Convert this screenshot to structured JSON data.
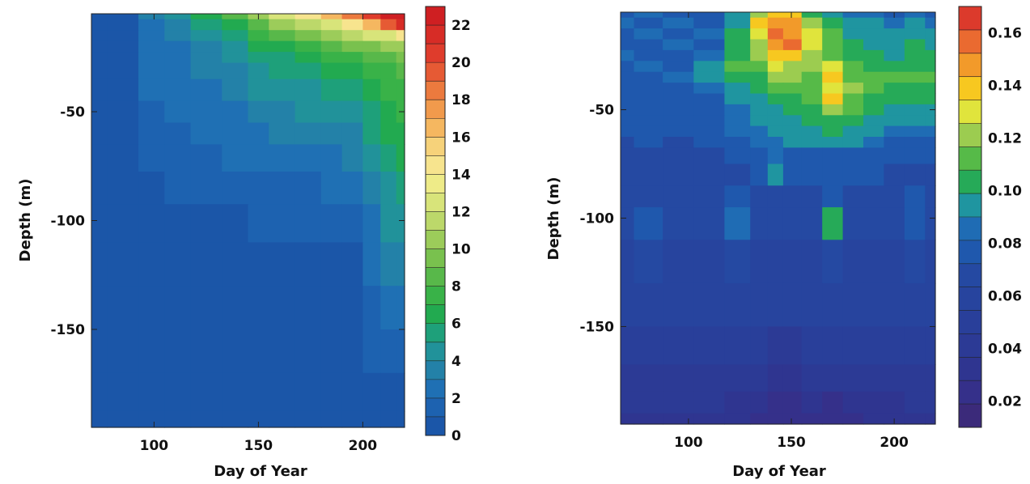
{
  "chart_data": [
    {
      "type": "heatmap",
      "title": "",
      "xlabel": "Day of Year",
      "ylabel": "Depth (m)",
      "xlim": [
        70,
        220
      ],
      "ylim": [
        -195,
        -5
      ],
      "xticks": [
        100,
        150,
        200
      ],
      "yticks": [
        -50,
        -100,
        -150
      ],
      "colorbar": {
        "min": 0,
        "max": 23,
        "ticks": [
          0,
          2,
          4,
          6,
          8,
          10,
          12,
          14,
          16,
          18,
          20,
          22
        ],
        "colors": [
          "#1b56a8",
          "#1d62b0",
          "#1f70b4",
          "#2381a8",
          "#21929a",
          "#1ea07a",
          "#22aa50",
          "#39b248",
          "#58b84a",
          "#79c14e",
          "#9ccc5a",
          "#bcd86a",
          "#d8e47a",
          "#eeeb88",
          "#f7e48e",
          "#f6d27a",
          "#f5b760",
          "#f19a4c",
          "#ec7a3e",
          "#e65a34",
          "#df3c2c",
          "#d72c26",
          "#cf1f22"
        ]
      },
      "grid": false,
      "legend": "right",
      "x": [
        70,
        85,
        100,
        110,
        125,
        140,
        150,
        160,
        175,
        185,
        195,
        205,
        212,
        220
      ],
      "y": [
        -5,
        -10,
        -15,
        -20,
        -25,
        -30,
        -40,
        -50,
        -60,
        -70,
        -85,
        -100,
        -120,
        -140,
        -160,
        -180,
        -195
      ],
      "z": [
        [
          0.5,
          0.6,
          3.0,
          4.0,
          6.0,
          8.0,
          10.5,
          12.5,
          14.0,
          16.0,
          18.0,
          20.5,
          22.5,
          23.0
        ],
        [
          0.5,
          0.6,
          2.8,
          3.5,
          5.0,
          6.5,
          8.5,
          10.0,
          11.5,
          13.0,
          14.5,
          16.5,
          19.0,
          21.0
        ],
        [
          0.5,
          0.6,
          2.5,
          3.0,
          4.2,
          5.5,
          7.0,
          8.0,
          9.0,
          10.5,
          11.5,
          12.0,
          13.0,
          14.5
        ],
        [
          0.5,
          0.6,
          2.4,
          2.8,
          3.8,
          4.8,
          6.0,
          6.8,
          7.5,
          8.5,
          9.0,
          9.5,
          10.0,
          10.5
        ],
        [
          0.5,
          0.6,
          2.3,
          2.7,
          3.5,
          4.2,
          5.2,
          5.8,
          6.5,
          7.0,
          7.5,
          8.0,
          8.5,
          9.0
        ],
        [
          0.5,
          0.6,
          2.2,
          2.6,
          3.2,
          3.8,
          4.6,
          5.2,
          5.6,
          6.0,
          6.5,
          7.0,
          7.5,
          8.0
        ],
        [
          0.5,
          0.5,
          2.0,
          2.4,
          2.8,
          3.3,
          4.0,
          4.5,
          4.8,
          5.2,
          5.6,
          6.2,
          7.0,
          7.5
        ],
        [
          0.5,
          0.5,
          1.8,
          2.2,
          2.5,
          2.9,
          3.4,
          3.8,
          4.0,
          4.3,
          4.6,
          5.5,
          6.5,
          7.0
        ],
        [
          0.5,
          0.5,
          1.6,
          1.9,
          2.2,
          2.5,
          2.9,
          3.2,
          3.4,
          3.6,
          3.9,
          5.0,
          6.0,
          6.5
        ],
        [
          0.5,
          0.5,
          1.2,
          1.5,
          1.8,
          2.0,
          2.3,
          2.5,
          2.7,
          2.9,
          3.2,
          4.5,
          5.5,
          6.0
        ],
        [
          0.5,
          0.5,
          0.8,
          1.0,
          1.3,
          1.5,
          1.6,
          1.8,
          1.9,
          2.0,
          2.2,
          3.5,
          4.8,
          5.2
        ],
        [
          0.5,
          0.5,
          0.6,
          0.7,
          0.8,
          0.9,
          1.0,
          1.1,
          1.2,
          1.3,
          1.4,
          2.8,
          4.0,
          4.5
        ],
        [
          0.5,
          0.5,
          0.5,
          0.5,
          0.6,
          0.6,
          0.7,
          0.7,
          0.8,
          0.8,
          0.9,
          2.2,
          3.2,
          3.5
        ],
        [
          0.5,
          0.5,
          0.5,
          0.5,
          0.5,
          0.5,
          0.5,
          0.5,
          0.5,
          0.6,
          0.6,
          1.6,
          2.4,
          2.6
        ],
        [
          0.5,
          0.5,
          0.5,
          0.5,
          0.5,
          0.5,
          0.5,
          0.5,
          0.5,
          0.5,
          0.5,
          1.0,
          1.6,
          1.8
        ],
        [
          0.5,
          0.5,
          0.5,
          0.5,
          0.5,
          0.5,
          0.5,
          0.5,
          0.5,
          0.5,
          0.5,
          0.6,
          0.8,
          0.9
        ],
        [
          0.5,
          0.5,
          0.5,
          0.5,
          0.5,
          0.5,
          0.5,
          0.5,
          0.5,
          0.5,
          0.5,
          0.5,
          0.5,
          0.5
        ]
      ]
    },
    {
      "type": "heatmap",
      "title": "",
      "xlabel": "Day of Year",
      "ylabel": "Depth (m)",
      "xlim": [
        67,
        220
      ],
      "ylim": [
        -195,
        -5
      ],
      "xticks": [
        100,
        150,
        200
      ],
      "yticks": [
        -50,
        -100,
        -150
      ],
      "colorbar": {
        "min": 0.01,
        "max": 0.17,
        "ticks": [
          0.02,
          0.04,
          0.06,
          0.08,
          0.1,
          0.12,
          0.14,
          0.16
        ],
        "colors": [
          "#3b2a7a",
          "#35308a",
          "#2f3590",
          "#2c3a95",
          "#293f9a",
          "#27449e",
          "#2549a2",
          "#1f58ad",
          "#1f6cb4",
          "#1f95a0",
          "#26aa58",
          "#56ba48",
          "#9ccc50",
          "#e0e43c",
          "#f7c820",
          "#f29a2a",
          "#ea6a30",
          "#dc3a2c"
        ]
      },
      "grid": false,
      "legend": "right",
      "x": [
        67,
        80,
        95,
        110,
        125,
        135,
        142,
        150,
        160,
        170,
        180,
        190,
        200,
        210,
        220
      ],
      "y": [
        -5,
        -10,
        -15,
        -20,
        -25,
        -30,
        -35,
        -40,
        -45,
        -50,
        -55,
        -60,
        -65,
        -70,
        -80,
        -90,
        -100,
        -120,
        -140,
        -160,
        -175,
        -185,
        -195
      ],
      "z": [
        [
          0.08,
          0.085,
          0.08,
          0.08,
          0.09,
          0.12,
          0.14,
          0.14,
          0.1,
          0.09,
          0.085,
          0.085,
          0.08,
          0.085,
          0.08
        ],
        [
          0.085,
          0.08,
          0.085,
          0.08,
          0.095,
          0.135,
          0.15,
          0.15,
          0.12,
          0.1,
          0.09,
          0.09,
          0.085,
          0.09,
          0.085
        ],
        [
          0.08,
          0.085,
          0.08,
          0.085,
          0.1,
          0.13,
          0.16,
          0.145,
          0.13,
          0.11,
          0.095,
          0.09,
          0.09,
          0.095,
          0.09
        ],
        [
          0.08,
          0.08,
          0.085,
          0.08,
          0.1,
          0.12,
          0.15,
          0.155,
          0.13,
          0.11,
          0.1,
          0.095,
          0.09,
          0.1,
          0.095
        ],
        [
          0.085,
          0.08,
          0.08,
          0.085,
          0.105,
          0.12,
          0.14,
          0.14,
          0.125,
          0.115,
          0.1,
          0.1,
          0.095,
          0.1,
          0.1
        ],
        [
          0.08,
          0.085,
          0.08,
          0.09,
          0.11,
          0.11,
          0.13,
          0.125,
          0.12,
          0.13,
          0.11,
          0.105,
          0.1,
          0.105,
          0.105
        ],
        [
          0.08,
          0.08,
          0.085,
          0.09,
          0.1,
          0.1,
          0.12,
          0.12,
          0.115,
          0.135,
          0.115,
          0.11,
          0.115,
          0.11,
          0.11
        ],
        [
          0.075,
          0.08,
          0.08,
          0.085,
          0.095,
          0.1,
          0.11,
          0.115,
          0.11,
          0.13,
          0.12,
          0.11,
          0.105,
          0.105,
          0.105
        ],
        [
          0.08,
          0.075,
          0.08,
          0.08,
          0.09,
          0.095,
          0.1,
          0.105,
          0.11,
          0.14,
          0.115,
          0.105,
          0.1,
          0.1,
          0.1
        ],
        [
          0.075,
          0.08,
          0.075,
          0.08,
          0.085,
          0.09,
          0.095,
          0.1,
          0.105,
          0.12,
          0.11,
          0.1,
          0.095,
          0.095,
          0.095
        ],
        [
          0.08,
          0.075,
          0.075,
          0.08,
          0.085,
          0.09,
          0.09,
          0.095,
          0.1,
          0.105,
          0.1,
          0.095,
          0.09,
          0.09,
          0.09
        ],
        [
          0.075,
          0.075,
          0.075,
          0.075,
          0.085,
          0.085,
          0.09,
          0.09,
          0.095,
          0.1,
          0.095,
          0.09,
          0.085,
          0.085,
          0.085
        ],
        [
          0.07,
          0.075,
          0.07,
          0.075,
          0.08,
          0.085,
          0.085,
          0.09,
          0.09,
          0.09,
          0.09,
          0.085,
          0.08,
          0.08,
          0.08
        ],
        [
          0.07,
          0.07,
          0.07,
          0.07,
          0.075,
          0.08,
          0.085,
          0.08,
          0.08,
          0.08,
          0.08,
          0.08,
          0.075,
          0.075,
          0.08
        ],
        [
          0.07,
          0.07,
          0.07,
          0.07,
          0.07,
          0.075,
          0.09,
          0.075,
          0.075,
          0.075,
          0.075,
          0.075,
          0.07,
          0.07,
          0.07
        ],
        [
          0.065,
          0.07,
          0.065,
          0.07,
          0.075,
          0.07,
          0.07,
          0.07,
          0.07,
          0.08,
          0.07,
          0.07,
          0.07,
          0.075,
          0.07
        ],
        [
          0.065,
          0.075,
          0.065,
          0.065,
          0.085,
          0.07,
          0.065,
          0.065,
          0.065,
          0.1,
          0.065,
          0.065,
          0.065,
          0.08,
          0.065
        ],
        [
          0.06,
          0.065,
          0.06,
          0.06,
          0.065,
          0.06,
          0.06,
          0.06,
          0.06,
          0.065,
          0.06,
          0.06,
          0.06,
          0.07,
          0.06
        ],
        [
          0.055,
          0.055,
          0.055,
          0.055,
          0.055,
          0.055,
          0.055,
          0.055,
          0.055,
          0.055,
          0.055,
          0.055,
          0.055,
          0.055,
          0.055
        ],
        [
          0.05,
          0.05,
          0.05,
          0.05,
          0.05,
          0.05,
          0.045,
          0.045,
          0.05,
          0.05,
          0.05,
          0.05,
          0.05,
          0.05,
          0.05
        ],
        [
          0.045,
          0.045,
          0.045,
          0.045,
          0.04,
          0.04,
          0.035,
          0.035,
          0.04,
          0.04,
          0.04,
          0.045,
          0.045,
          0.045,
          0.045
        ],
        [
          0.04,
          0.04,
          0.04,
          0.04,
          0.035,
          0.03,
          0.025,
          0.025,
          0.03,
          0.025,
          0.03,
          0.035,
          0.035,
          0.04,
          0.04
        ],
        [
          0.035,
          0.035,
          0.035,
          0.035,
          0.03,
          0.025,
          0.02,
          0.02,
          0.025,
          0.02,
          0.025,
          0.03,
          0.03,
          0.035,
          0.035
        ]
      ]
    }
  ]
}
